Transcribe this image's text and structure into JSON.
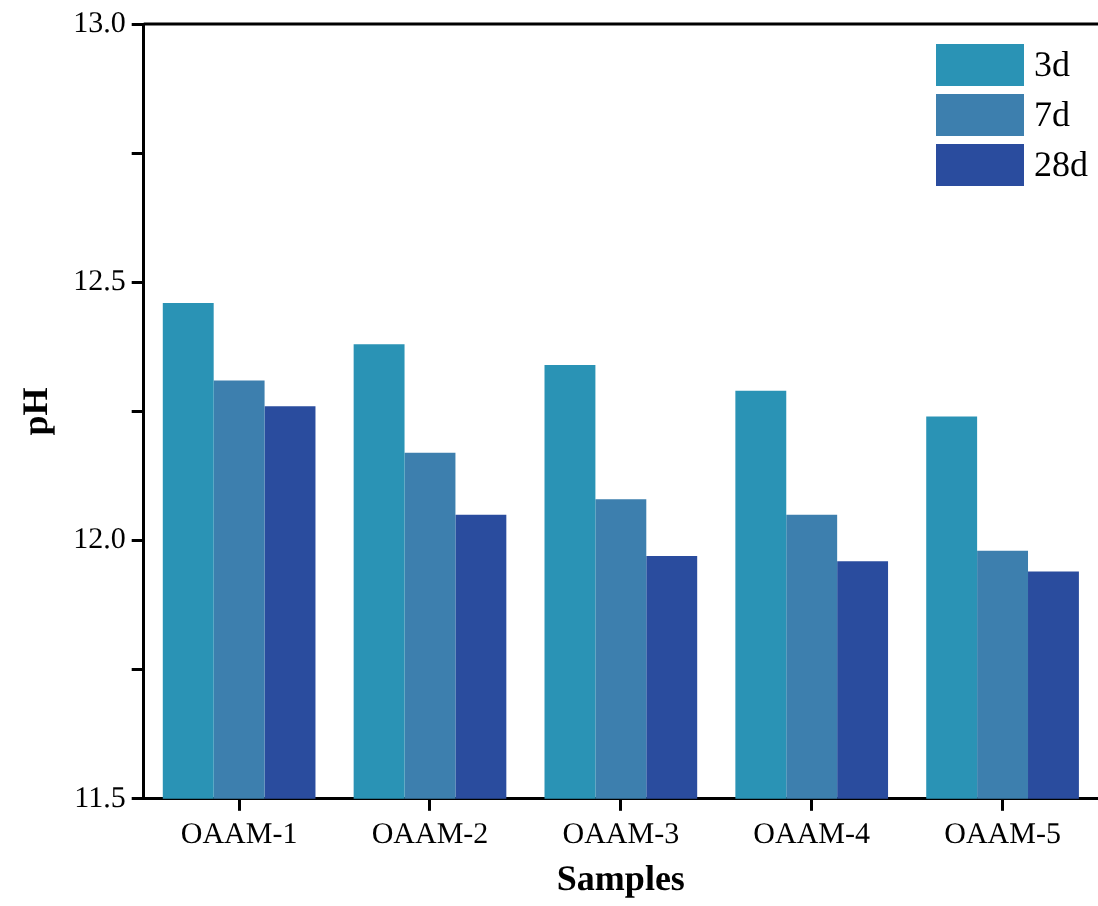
{
  "chart_data": {
    "type": "bar",
    "xlabel": "Samples",
    "ylabel": "pH",
    "categories": [
      "OAAM-1",
      "OAAM-2",
      "OAAM-3",
      "OAAM-4",
      "OAAM-5"
    ],
    "series": [
      {
        "name": "3d",
        "color": "#2a93b5",
        "values": [
          12.46,
          12.38,
          12.34,
          12.29,
          12.24
        ]
      },
      {
        "name": "7d",
        "color": "#3d7fae",
        "values": [
          12.31,
          12.17,
          12.08,
          12.05,
          11.98
        ]
      },
      {
        "name": "28d",
        "color": "#2a4c9e",
        "values": [
          12.26,
          12.05,
          11.97,
          11.96,
          11.94
        ]
      }
    ],
    "ylim": [
      11.5,
      13.0
    ],
    "yticks": [
      {
        "value": 11.5,
        "label": "11.5"
      },
      {
        "value": 11.75,
        "label": null
      },
      {
        "value": 12.0,
        "label": "12.0"
      },
      {
        "value": 12.25,
        "label": null
      },
      {
        "value": 12.5,
        "label": "12.5"
      },
      {
        "value": 12.75,
        "label": null
      },
      {
        "value": 13.0,
        "label": "13.0"
      }
    ],
    "legend": "top right",
    "grid": false
  }
}
